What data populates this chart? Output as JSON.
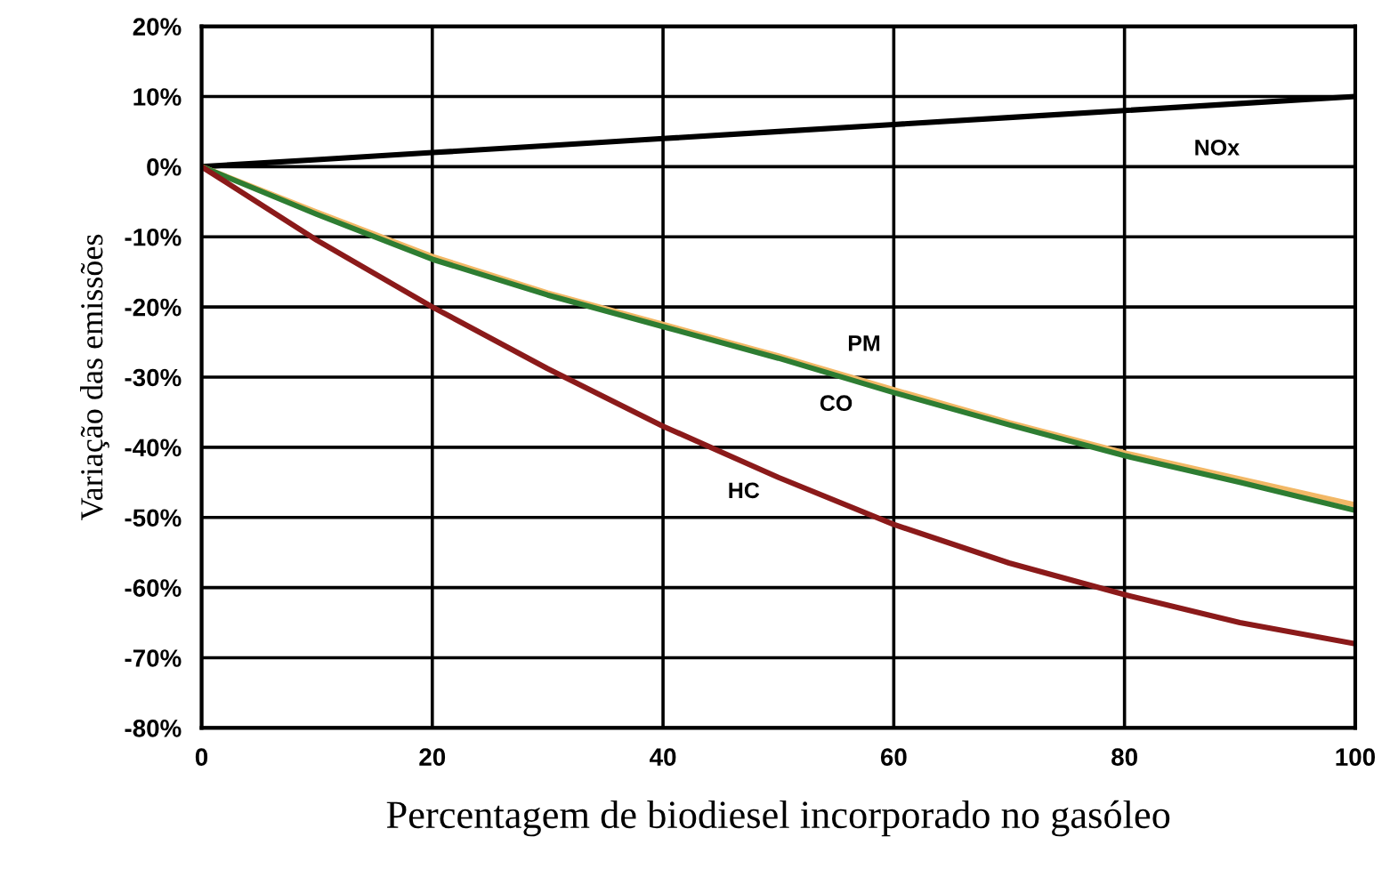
{
  "chart_data": {
    "type": "line",
    "xlabel": "Percentagem de biodiesel incorporado no gasóleo",
    "ylabel": "Variação das emissões",
    "x": [
      0,
      10,
      20,
      30,
      40,
      50,
      60,
      70,
      80,
      90,
      100
    ],
    "series": [
      {
        "name": "NOx",
        "color": "#000000",
        "values": [
          0,
          1,
          2,
          3,
          4,
          5,
          6,
          7,
          8,
          9,
          10
        ]
      },
      {
        "name": "PM",
        "color": "#f2b866",
        "values": [
          0,
          -6.5,
          -12.8,
          -18,
          -22.5,
          -27,
          -31.8,
          -36.5,
          -40.8,
          -44.5,
          -48.2
        ]
      },
      {
        "name": "CO",
        "color": "#2e7d32",
        "values": [
          0,
          -6.8,
          -13.2,
          -18.3,
          -22.8,
          -27.3,
          -32.2,
          -36.8,
          -41.2,
          -45,
          -49
        ]
      },
      {
        "name": "HC",
        "color": "#8b1a1a",
        "values": [
          0,
          -10.5,
          -20,
          -28.8,
          -37,
          -44.3,
          -51,
          -56.5,
          -61,
          -65,
          -68
        ]
      }
    ],
    "xlim": [
      0,
      100
    ],
    "xticks": [
      0,
      20,
      40,
      60,
      80,
      100
    ],
    "ylim": [
      -80,
      20
    ],
    "yticks": [
      {
        "value": -80,
        "label": "-80%"
      },
      {
        "value": -70,
        "label": "-70%"
      },
      {
        "value": -60,
        "label": "-60%"
      },
      {
        "value": -50,
        "label": "-50%"
      },
      {
        "value": -40,
        "label": "-40%"
      },
      {
        "value": -30,
        "label": "-30%"
      },
      {
        "value": -20,
        "label": "-20%"
      },
      {
        "value": -10,
        "label": "-10%"
      },
      {
        "value": 0,
        "label": "0%"
      },
      {
        "value": 10,
        "label": "10%"
      },
      {
        "value": 20,
        "label": "20%"
      }
    ],
    "grid": true
  }
}
